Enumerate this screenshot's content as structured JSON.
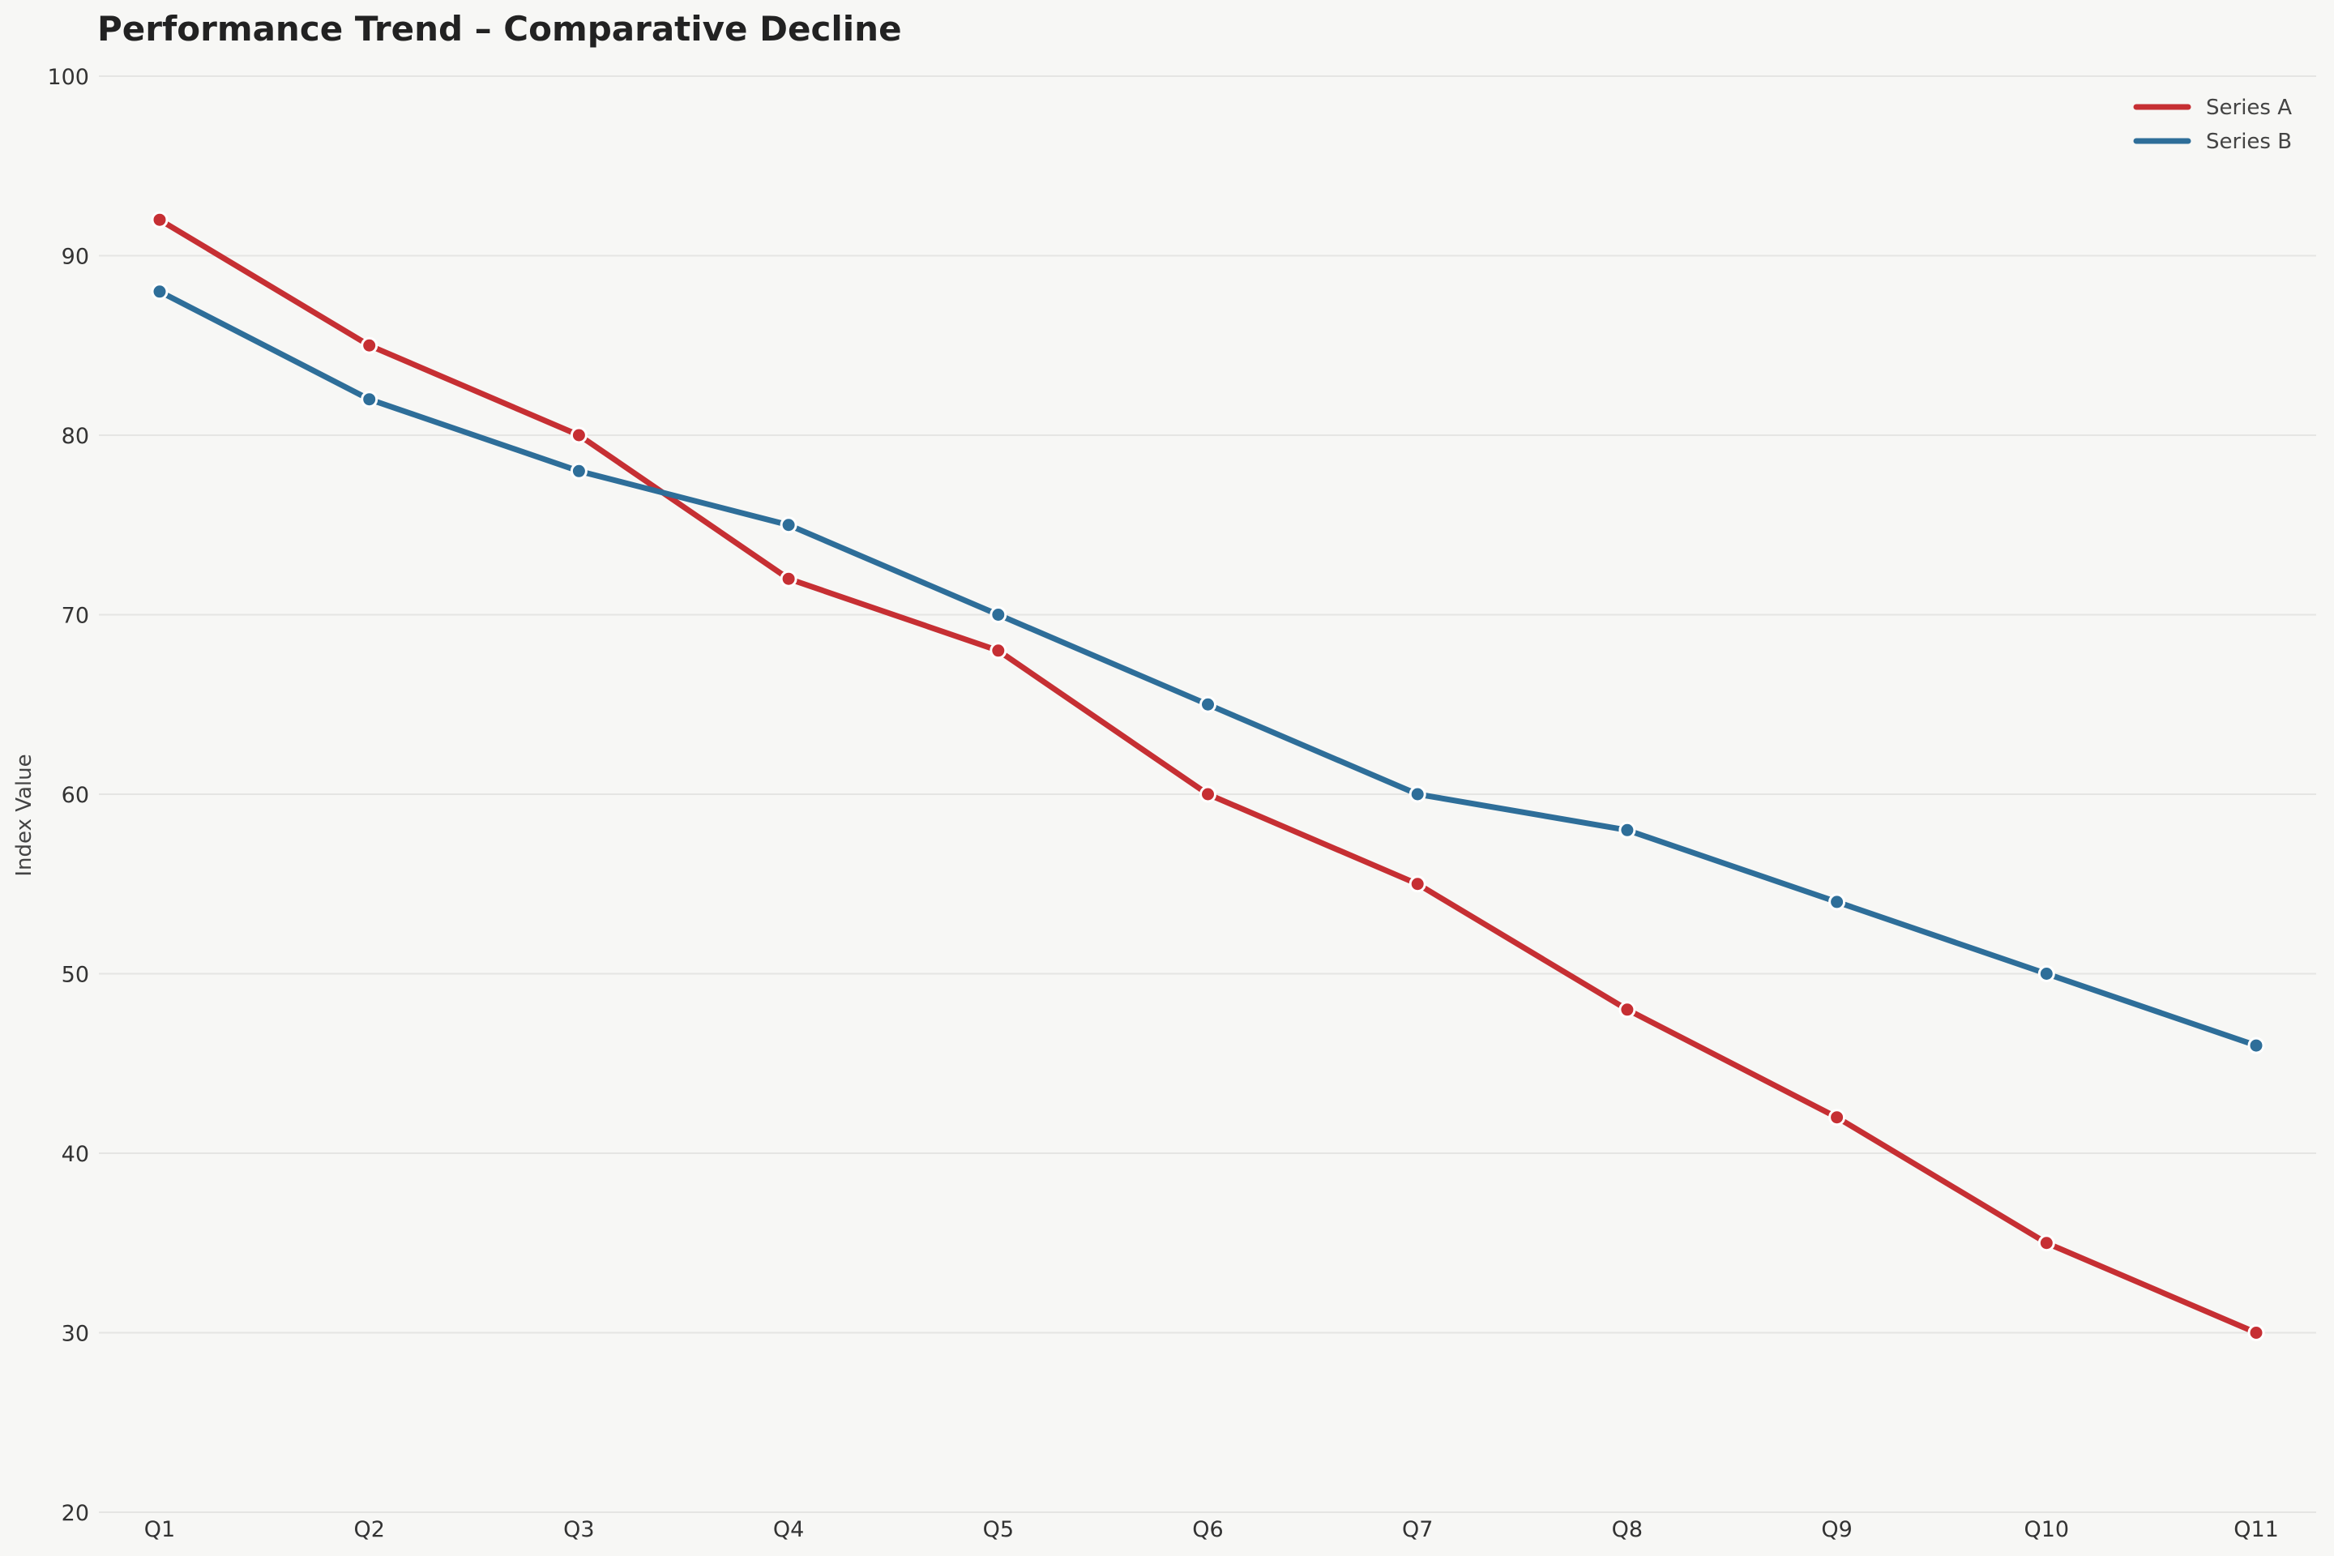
{
  "chart_data": {
    "type": "line",
    "title": "Performance Trend – Comparative Decline",
    "xlabel": "",
    "ylabel": "Index Value",
    "categories": [
      "Q1",
      "Q2",
      "Q3",
      "Q4",
      "Q5",
      "Q6",
      "Q7",
      "Q8",
      "Q9",
      "Q10",
      "Q11"
    ],
    "ylim": [
      20,
      100
    ],
    "yticks": [
      "20",
      "30",
      "40",
      "50",
      "60",
      "70",
      "80",
      "90",
      "100"
    ],
    "grid": true,
    "legend": "top-right",
    "series": [
      {
        "name": "Series A",
        "color": "#c62f33",
        "values": [
          92,
          85,
          80,
          72,
          68,
          60,
          55,
          48,
          42,
          35,
          30
        ]
      },
      {
        "name": "Series B",
        "color": "#2e6e99",
        "values": [
          88,
          82,
          78,
          75,
          70,
          65,
          60,
          58,
          54,
          50,
          46
        ]
      }
    ]
  }
}
